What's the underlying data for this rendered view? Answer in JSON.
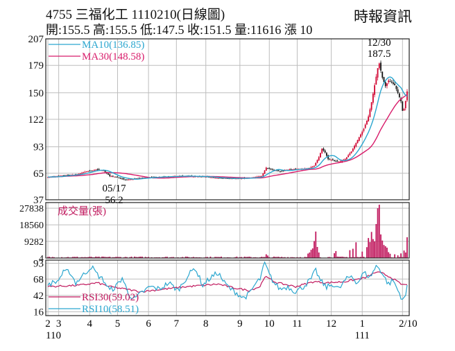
{
  "header": {
    "title": "4755  三福化工 1110210(日線圖)",
    "quote": "開:155.5 高:155.5 低:147.5 收:151.5 量:11616 漲 10",
    "source": "時報資訊"
  },
  "colors": {
    "up": "#d0002e",
    "down": "#111111",
    "ma10": "#2aa6cf",
    "ma30": "#d81b6a",
    "volume": "#c0185d",
    "rsi10": "#2aa6cf",
    "rsi30": "#c0185d",
    "grid": "#bdbdbd"
  },
  "chart_data": [
    {
      "type": "candlestick",
      "panel": "price",
      "yticks": [
        37,
        65,
        93,
        122,
        150,
        179,
        207
      ],
      "ylim": [
        37,
        207
      ],
      "legend": [
        {
          "key": "ma10",
          "label": "MA10(136.85)"
        },
        {
          "key": "ma30",
          "label": "MA30(148.58)"
        }
      ],
      "annotations": [
        {
          "date": "12/30",
          "value": 187.5,
          "label_date": "12/30",
          "label_value": "187.5",
          "position": "above"
        },
        {
          "date": "05/17",
          "value": 56.2,
          "label_date": "05/17",
          "label_value": "56.2",
          "position": "below"
        }
      ],
      "close_anchors": [
        [
          0,
          61
        ],
        [
          5,
          61.5
        ],
        [
          12,
          63
        ],
        [
          18,
          63.5
        ],
        [
          25,
          67
        ],
        [
          32,
          69
        ],
        [
          36,
          68
        ],
        [
          40,
          62
        ],
        [
          45,
          61
        ],
        [
          50,
          58
        ],
        [
          55,
          59
        ],
        [
          60,
          60
        ],
        [
          70,
          61
        ],
        [
          85,
          62
        ],
        [
          100,
          61.5
        ],
        [
          110,
          60
        ],
        [
          120,
          59.5
        ],
        [
          130,
          60
        ],
        [
          138,
          62
        ],
        [
          141,
          71
        ],
        [
          145,
          69
        ],
        [
          150,
          67
        ],
        [
          156,
          69
        ],
        [
          162,
          69.5
        ],
        [
          168,
          70
        ],
        [
          172,
          73
        ],
        [
          175,
          82
        ],
        [
          177,
          91
        ],
        [
          179,
          87
        ],
        [
          181,
          80
        ],
        [
          184,
          79
        ],
        [
          188,
          77
        ],
        [
          192,
          80
        ],
        [
          196,
          88
        ],
        [
          200,
          100
        ],
        [
          204,
          112
        ],
        [
          207,
          125
        ],
        [
          209,
          140
        ],
        [
          211,
          158
        ],
        [
          213,
          176
        ],
        [
          214,
          181
        ],
        [
          216,
          166
        ],
        [
          218,
          157
        ],
        [
          220,
          163
        ],
        [
          222,
          161
        ],
        [
          224,
          158
        ],
        [
          226,
          150
        ],
        [
          228,
          141
        ],
        [
          229,
          131
        ],
        [
          230,
          133
        ],
        [
          231,
          141.5
        ],
        [
          232,
          151.5
        ]
      ]
    },
    {
      "type": "bar",
      "panel": "volume",
      "title": "成交量(張)",
      "yticks": [
        4,
        9282,
        18560,
        27838
      ],
      "ylim": [
        0,
        31000
      ],
      "spikes": [
        [
          141,
          2100
        ],
        [
          142,
          1400
        ],
        [
          168,
          2500
        ],
        [
          169,
          3100
        ],
        [
          170,
          4600
        ],
        [
          171,
          5400
        ],
        [
          172,
          9500
        ],
        [
          173,
          14800
        ],
        [
          174,
          6200
        ],
        [
          175,
          3100
        ],
        [
          185,
          2700
        ],
        [
          186,
          3900
        ],
        [
          195,
          4400
        ],
        [
          197,
          5200
        ],
        [
          199,
          8800
        ],
        [
          203,
          3600
        ],
        [
          206,
          6100
        ],
        [
          207,
          11200
        ],
        [
          208,
          8900
        ],
        [
          209,
          14600
        ],
        [
          210,
          10600
        ],
        [
          211,
          9300
        ],
        [
          212,
          19000
        ],
        [
          213,
          27838
        ],
        [
          214,
          29800
        ],
        [
          215,
          13200
        ],
        [
          216,
          9800
        ],
        [
          217,
          7300
        ],
        [
          218,
          6600
        ],
        [
          219,
          5800
        ],
        [
          220,
          3300
        ],
        [
          221,
          2400
        ],
        [
          224,
          2100
        ],
        [
          226,
          1500
        ],
        [
          228,
          2600
        ],
        [
          230,
          4200
        ],
        [
          231,
          3100
        ],
        [
          232,
          11616
        ]
      ]
    },
    {
      "type": "line",
      "panel": "rsi",
      "yticks": [
        16,
        42,
        68,
        93
      ],
      "ylim": [
        10,
        98
      ],
      "legend": [
        {
          "key": "rsi30",
          "label": "RSI30(59.02)"
        },
        {
          "key": "rsi10",
          "label": "RSI10(58.51)"
        }
      ],
      "series": [
        {
          "name": "RSI10",
          "anchors": [
            [
              0,
              60
            ],
            [
              6,
              64
            ],
            [
              10,
              78
            ],
            [
              14,
              80
            ],
            [
              18,
              62
            ],
            [
              22,
              72
            ],
            [
              28,
              88
            ],
            [
              32,
              75
            ],
            [
              36,
              66
            ],
            [
              40,
              50
            ],
            [
              44,
              56
            ],
            [
              48,
              70
            ],
            [
              52,
              45
            ],
            [
              56,
              36
            ],
            [
              60,
              45
            ],
            [
              66,
              56
            ],
            [
              72,
              52
            ],
            [
              78,
              62
            ],
            [
              84,
              50
            ],
            [
              90,
              72
            ],
            [
              95,
              86
            ],
            [
              100,
              58
            ],
            [
              105,
              70
            ],
            [
              110,
              78
            ],
            [
              114,
              62
            ],
            [
              118,
              52
            ],
            [
              122,
              46
            ],
            [
              126,
              38
            ],
            [
              130,
              44
            ],
            [
              134,
              60
            ],
            [
              137,
              68
            ],
            [
              140,
              93
            ],
            [
              143,
              75
            ],
            [
              146,
              62
            ],
            [
              150,
              52
            ],
            [
              155,
              56
            ],
            [
              160,
              48
            ],
            [
              165,
              56
            ],
            [
              170,
              68
            ],
            [
              173,
              82
            ],
            [
              176,
              65
            ],
            [
              180,
              55
            ],
            [
              184,
              60
            ],
            [
              188,
              52
            ],
            [
              192,
              66
            ],
            [
              196,
              73
            ],
            [
              200,
              62
            ],
            [
              204,
              78
            ],
            [
              208,
              71
            ],
            [
              212,
              88
            ],
            [
              214,
              86
            ],
            [
              217,
              72
            ],
            [
              220,
              60
            ],
            [
              223,
              66
            ],
            [
              226,
              50
            ],
            [
              229,
              36
            ],
            [
              231,
              42
            ],
            [
              232,
              58.51
            ]
          ]
        },
        {
          "name": "RSI30",
          "anchors": [
            [
              0,
              56
            ],
            [
              20,
              58
            ],
            [
              32,
              62
            ],
            [
              40,
              56
            ],
            [
              50,
              52
            ],
            [
              60,
              48
            ],
            [
              75,
              52
            ],
            [
              90,
              56
            ],
            [
              100,
              58
            ],
            [
              110,
              60
            ],
            [
              120,
              54
            ],
            [
              130,
              50
            ],
            [
              137,
              56
            ],
            [
              140,
              72
            ],
            [
              148,
              62
            ],
            [
              160,
              56
            ],
            [
              172,
              64
            ],
            [
              180,
              62
            ],
            [
              192,
              64
            ],
            [
              205,
              70
            ],
            [
              212,
              79
            ],
            [
              216,
              77
            ],
            [
              222,
              70
            ],
            [
              228,
              60
            ],
            [
              232,
              59.02
            ]
          ]
        }
      ]
    },
    {
      "type": "axis",
      "panel": "x-axis",
      "months": [
        {
          "label": "2",
          "idx": 0
        },
        {
          "label": "3",
          "idx": 7
        },
        {
          "label": "4",
          "idx": 27
        },
        {
          "label": "5",
          "idx": 45
        },
        {
          "label": "6",
          "idx": 65
        },
        {
          "label": "7",
          "idx": 83
        },
        {
          "label": "8",
          "idx": 102
        },
        {
          "label": "9",
          "idx": 124
        },
        {
          "label": "10",
          "idx": 143
        },
        {
          "label": "11",
          "idx": 161
        },
        {
          "label": "12",
          "idx": 183
        },
        {
          "label": "1",
          "idx": 203
        },
        {
          "label": "2/10",
          "idx": 229
        }
      ],
      "years": [
        {
          "label": "110",
          "idx": 0
        },
        {
          "label": "111",
          "idx": 203
        }
      ],
      "n_days": 233
    }
  ]
}
